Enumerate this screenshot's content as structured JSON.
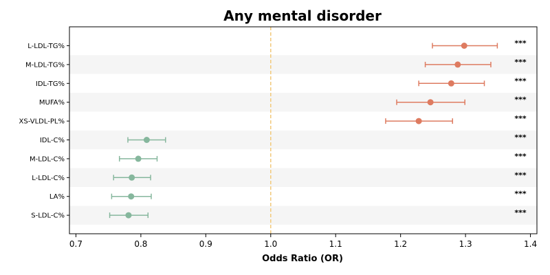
{
  "chart_data": {
    "type": "forest",
    "title": "Any mental disorder",
    "xlabel": "Odds Ratio (OR)",
    "xlim": [
      0.69,
      1.41
    ],
    "xticks": [
      "0.7",
      "0.8",
      "0.9",
      "1.0",
      "1.1",
      "1.2",
      "1.3",
      "1.4"
    ],
    "reference_line": 1.0,
    "reference_color": "#f2c97a",
    "colors": {
      "risk": "#de7b60",
      "protective": "#86b79d",
      "band": "#f5f5f5"
    },
    "categories": [
      "L-LDL-TG%",
      "M-LDL-TG%",
      "IDL-TG%",
      "MUFA%",
      "XS-VLDL-PL%",
      "IDL-C%",
      "M-LDL-C%",
      "L-LDL-C%",
      "LA%",
      "S-LDL-C%"
    ],
    "or": [
      1.298,
      1.288,
      1.278,
      1.246,
      1.228,
      0.809,
      0.796,
      0.786,
      0.785,
      0.781
    ],
    "lower": [
      1.249,
      1.238,
      1.228,
      1.194,
      1.177,
      0.78,
      0.767,
      0.758,
      0.755,
      0.752
    ],
    "upper": [
      1.349,
      1.339,
      1.329,
      1.299,
      1.28,
      0.838,
      0.825,
      0.815,
      0.816,
      0.811
    ],
    "significance": [
      "***",
      "***",
      "***",
      "***",
      "***",
      "***",
      "***",
      "***",
      "***",
      "***"
    ],
    "direction": [
      "risk",
      "risk",
      "risk",
      "risk",
      "risk",
      "protective",
      "protective",
      "protective",
      "protective",
      "protective"
    ]
  }
}
